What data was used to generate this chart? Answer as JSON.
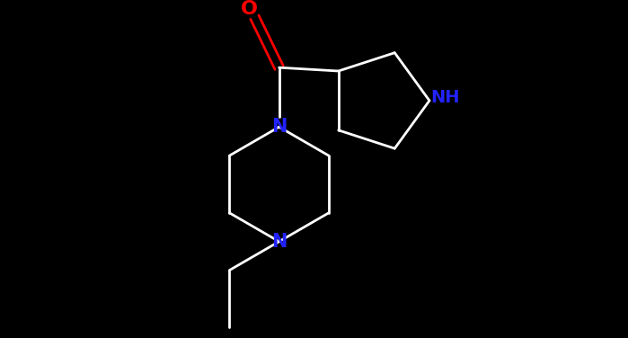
{
  "background_color": "#000000",
  "bond_color": "#ffffff",
  "N_color": "#2222ff",
  "O_color": "#ff0000",
  "bond_width": 2.0,
  "figsize": [
    6.99,
    3.76
  ],
  "dpi": 100,
  "font_size": 15,
  "xlim": [
    0,
    10
  ],
  "ylim": [
    0,
    5.37
  ]
}
